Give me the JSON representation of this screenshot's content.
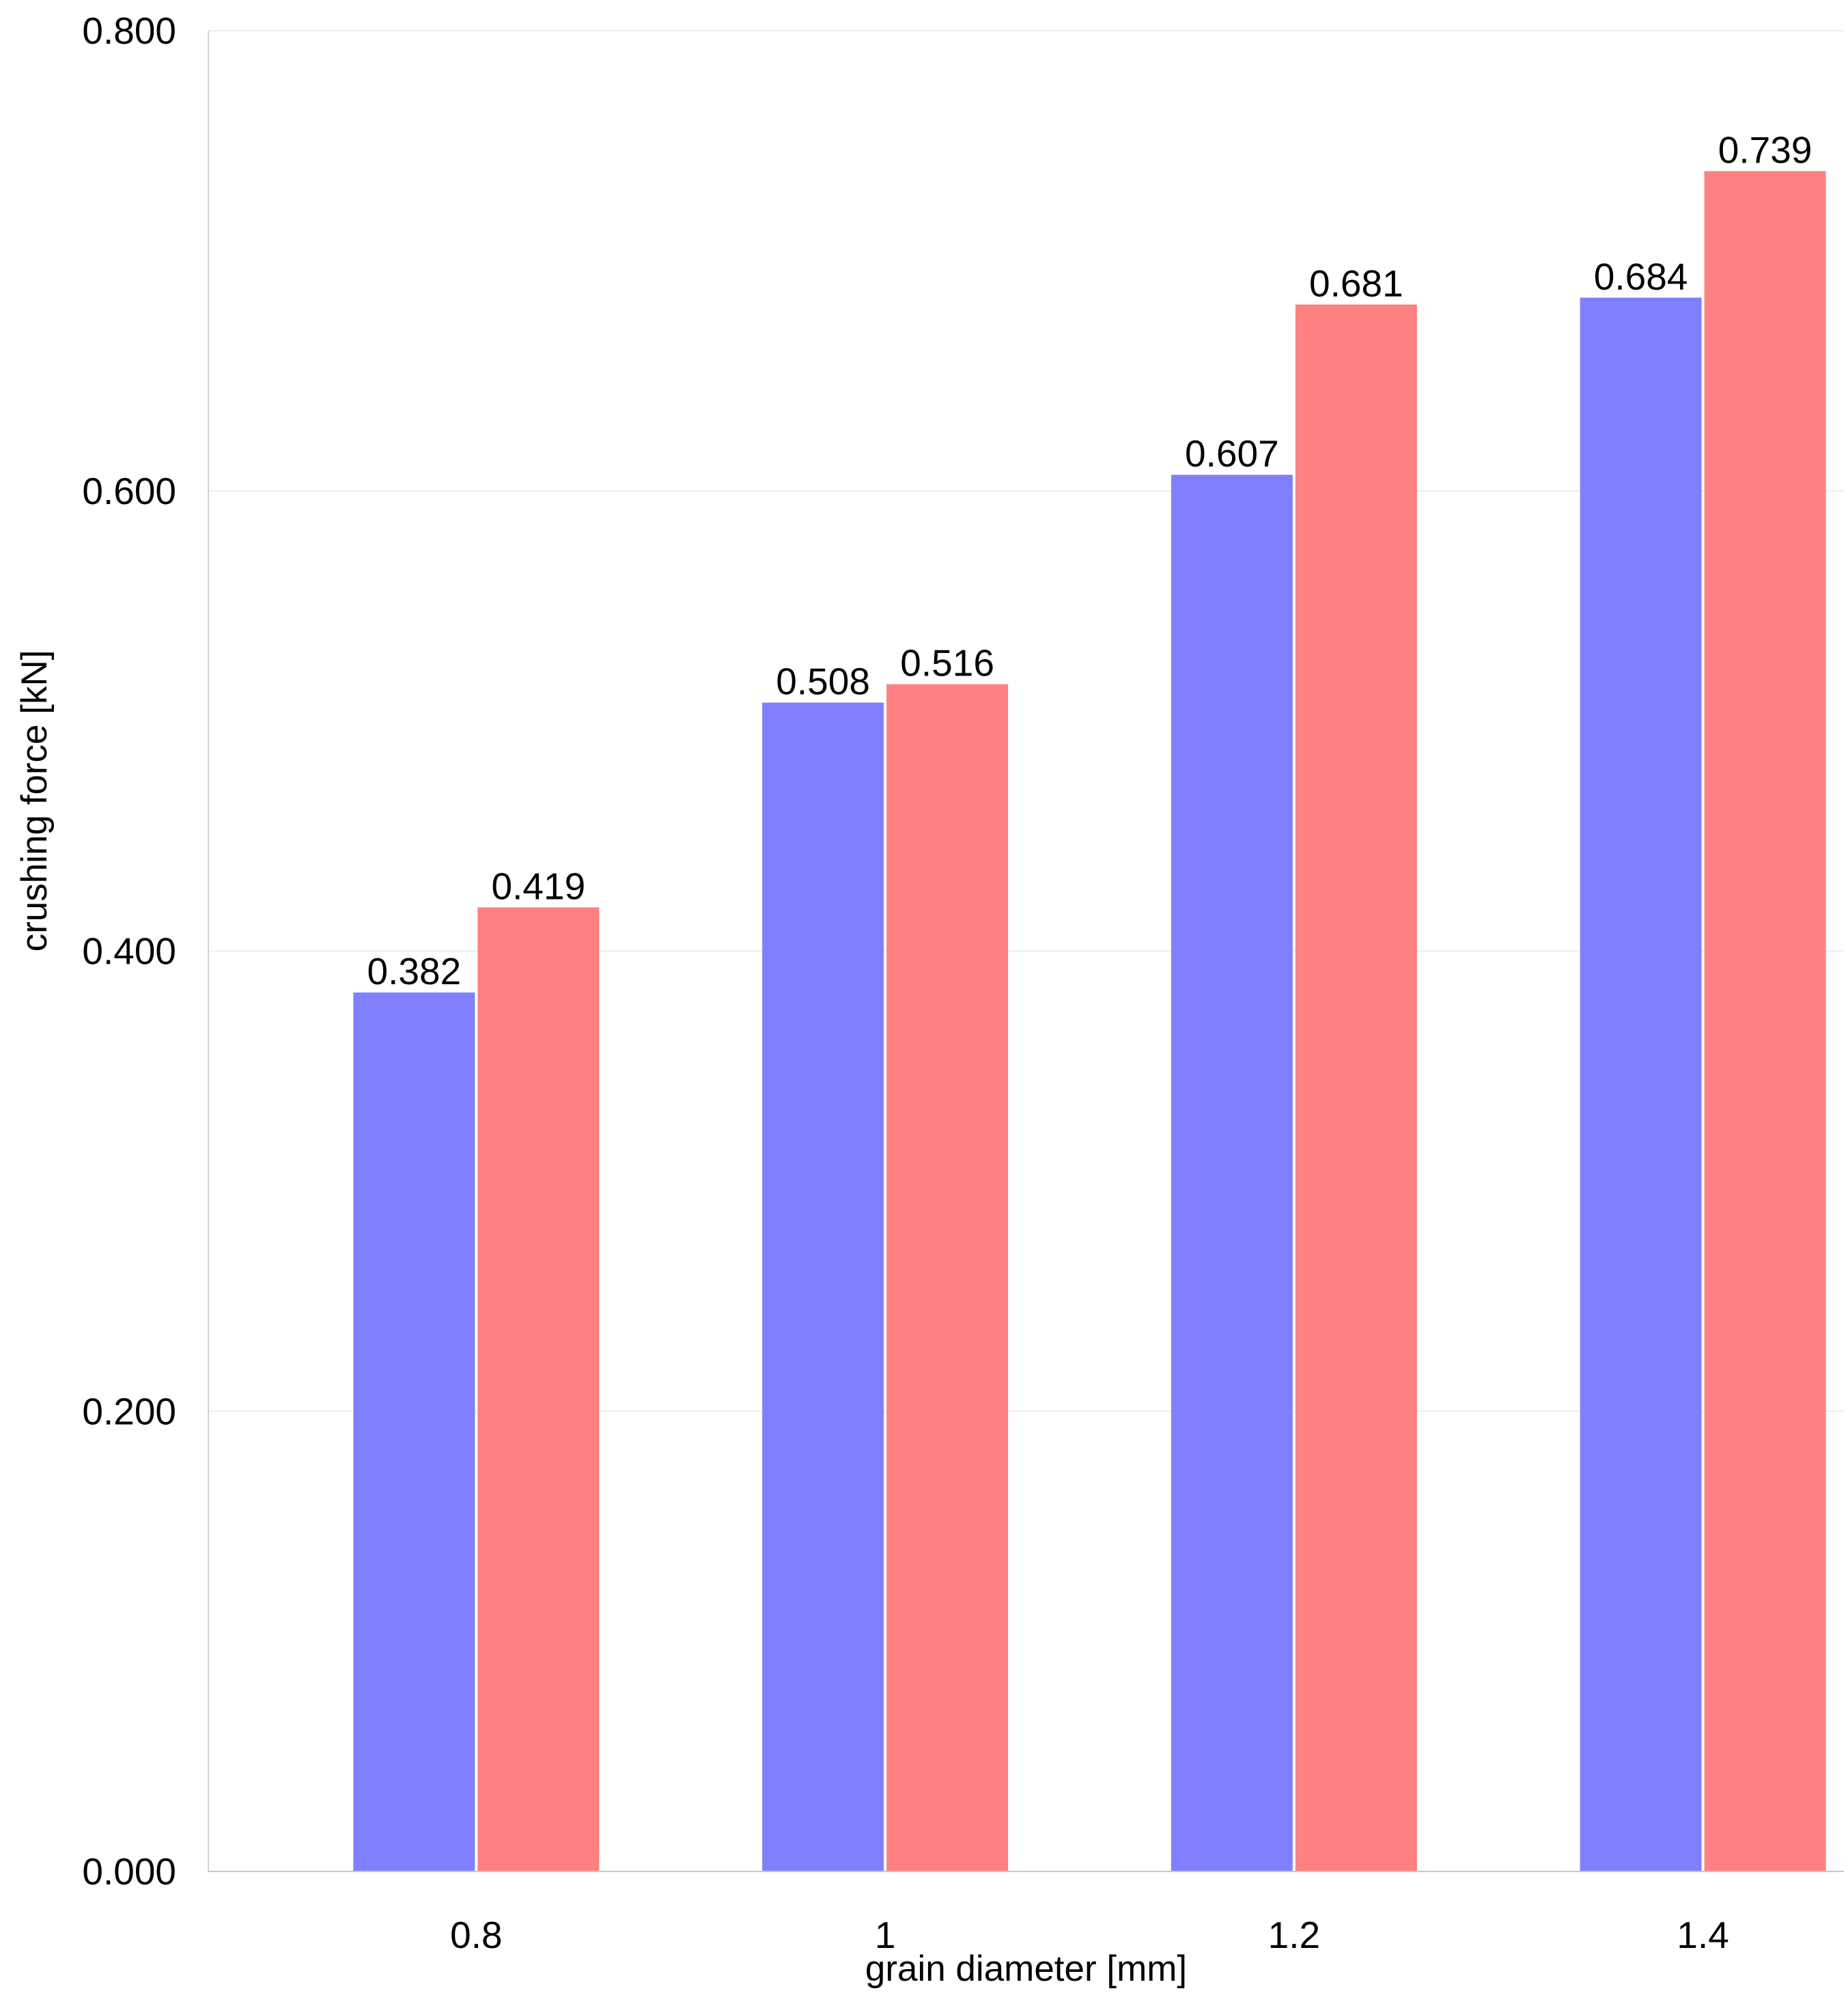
{
  "chart_data": {
    "type": "bar",
    "title": "",
    "xlabel": "grain diameter [mm]",
    "ylabel": "crushing force [kN]",
    "categories": [
      "0.8",
      "1",
      "1.2",
      "1.4"
    ],
    "series": [
      {
        "name": "series-1",
        "color": "#8080FF",
        "values": [
          0.382,
          0.508,
          0.607,
          0.684
        ],
        "labels": [
          "0.382",
          "0.508",
          "0.607",
          "0.684"
        ]
      },
      {
        "name": "series-2",
        "color": "#FF8080",
        "values": [
          0.419,
          0.516,
          0.681,
          0.739
        ],
        "labels": [
          "0.419",
          "0.516",
          "0.681",
          "0.739"
        ]
      }
    ],
    "ylim": [
      0,
      0.8
    ],
    "yticks": [
      0,
      0.2,
      0.4,
      0.6,
      0.8
    ],
    "ytick_labels": [
      "0.000",
      "0.200",
      "0.400",
      "0.600",
      "0.800"
    ],
    "grid": true,
    "legend": "none"
  }
}
